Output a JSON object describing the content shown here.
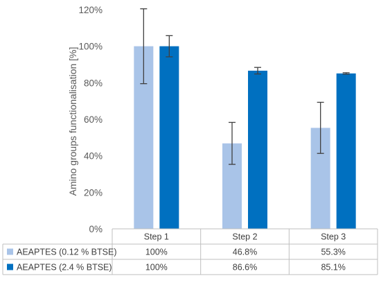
{
  "chart_data": {
    "type": "bar",
    "ylabel": "Amino groups functionalisation [%]",
    "ylim": [
      0,
      120
    ],
    "ytick_step": 20,
    "ytick_suffix": "%",
    "grid": false,
    "legend": "table",
    "categories": [
      "Step 1",
      "Step 2",
      "Step 3"
    ],
    "series": [
      {
        "name": "AEAPTES (0.12 % BTSE)",
        "color": "#a9c4e8",
        "values": [
          100,
          46.8,
          55.3
        ],
        "error": [
          20.5,
          11.5,
          14
        ],
        "table_labels": [
          "100%",
          "46.8%",
          "55.3%"
        ]
      },
      {
        "name": "AEAPTES (2.4 % BTSE)",
        "color": "#0070c0",
        "values": [
          100,
          86.6,
          85.1
        ],
        "error": [
          5.8,
          1.8,
          0.4
        ],
        "table_labels": [
          "100%",
          "86.6%",
          "85.1%"
        ]
      }
    ]
  }
}
